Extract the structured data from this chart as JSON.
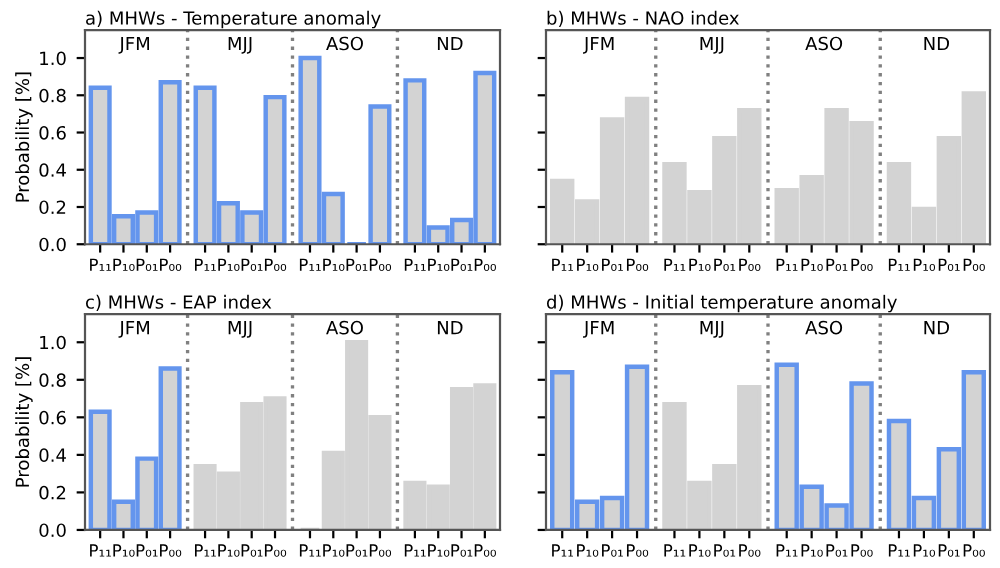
{
  "chart_data": [
    {
      "type": "bar",
      "title": "a) MHWs - Temperature anomaly",
      "ylabel": "Probability [%]",
      "categories": [
        "P₁₁",
        "P₁₀",
        "P₀₁",
        "P₀₀",
        "P₁₁",
        "P₁₀",
        "P₀₁",
        "P₀₀",
        "P₁₁",
        "P₁₀",
        "P₀₁",
        "P₀₀",
        "P₁₁",
        "P₁₀",
        "P₀₁",
        "P₀₀"
      ],
      "series": [
        {
          "color": "#6495ed",
          "values": [
            0.84,
            0.15,
            0.17,
            0.87,
            0.84,
            0.22,
            0.17,
            0.79,
            1.0,
            0.27,
            0.0,
            0.74,
            0.88,
            0.09,
            0.13,
            0.92
          ]
        }
      ],
      "annotations": [
        "JFM",
        "MJJ",
        "ASO",
        "ND"
      ],
      "ylim": [
        0,
        1.15
      ],
      "yticks": [
        {
          "value": 0,
          "label": "0.0"
        },
        {
          "value": 0.2,
          "label": "0.2"
        },
        {
          "value": 0.4,
          "label": "0.4"
        },
        {
          "value": 0.6,
          "label": "0.6"
        },
        {
          "value": 0.8,
          "label": "0.8"
        },
        {
          "value": 1.0,
          "label": "1.0"
        }
      ]
    },
    {
      "type": "bar",
      "title": "b) MHWs - NAO index",
      "tick_labels": "x",
      "categories": [
        "P₁₁",
        "P₁₀",
        "P₀₁",
        "P₀₀",
        "P₁₁",
        "P₁₀",
        "P₀₁",
        "P₀₀",
        "P₁₁",
        "P₁₀",
        "P₀₁",
        "P₀₀",
        "P₁₁",
        "P₁₀",
        "P₀₁",
        "P₀₀"
      ],
      "series": [
        {
          "color": "#d3d3d3",
          "values": [
            0.34,
            0.23,
            0.67,
            0.78,
            0.43,
            0.28,
            0.57,
            0.72,
            0.29,
            0.36,
            0.72,
            0.65,
            0.43,
            0.19,
            0.57,
            0.81
          ]
        }
      ],
      "annotations": [
        "JFM",
        "MJJ",
        "ASO",
        "ND"
      ],
      "ylim": [
        0,
        1.15
      ],
      "yticks": [
        0,
        0.2,
        0.4,
        0.6,
        0.8,
        1.0
      ]
    },
    {
      "type": "bar",
      "title": "c) MHWs - EAP index",
      "ylabel": "Probability [%]",
      "categories": [
        "P₁₁",
        "P₁₀",
        "P₀₁",
        "P₀₀",
        "P₁₁",
        "P₁₀",
        "P₀₁",
        "P₀₀",
        "P₁₁",
        "P₁₀",
        "P₀₁",
        "P₀₀",
        "P₁₁",
        "P₁₀",
        "P₀₁",
        "P₀₀"
      ],
      "series": [
        {
          "color": "#6495ed",
          "values": [
            0.63,
            0.15,
            0.38,
            0.86,
            null,
            null,
            null,
            null,
            null,
            null,
            null,
            null,
            null,
            null,
            null,
            null
          ]
        },
        {
          "color": "#d3d3d3",
          "values": [
            null,
            null,
            null,
            null,
            0.34,
            0.3,
            0.67,
            0.7,
            0.0,
            0.41,
            1.0,
            0.6,
            0.25,
            0.23,
            0.75,
            0.77
          ]
        }
      ],
      "annotations": [
        "JFM",
        "MJJ",
        "ASO",
        "ND"
      ],
      "ylim": [
        0,
        1.15
      ],
      "yticks": [
        {
          "value": 0,
          "label": "0.0"
        },
        {
          "value": 0.2,
          "label": "0.2"
        },
        {
          "value": 0.4,
          "label": "0.4"
        },
        {
          "value": 0.6,
          "label": "0.6"
        },
        {
          "value": 0.8,
          "label": "0.8"
        },
        {
          "value": 1.0,
          "label": "1.0"
        }
      ]
    },
    {
      "type": "bar",
      "title": "d) MHWs - Initial temperature anomaly",
      "tick_labels": "x",
      "categories": [
        "P₁₁",
        "P₁₀",
        "P₀₁",
        "P₀₀",
        "P₁₁",
        "P₁₀",
        "P₀₁",
        "P₀₀",
        "P₁₁",
        "P₁₀",
        "P₀₁",
        "P₀₀",
        "P₁₁",
        "P₁₀",
        "P₀₁",
        "P₀₀"
      ],
      "series": [
        {
          "color": "#6495ed",
          "values": [
            0.84,
            0.15,
            0.17,
            0.87,
            null,
            null,
            null,
            null,
            0.88,
            0.23,
            0.13,
            0.78,
            0.58,
            0.17,
            0.43,
            0.84
          ]
        },
        {
          "color": "#d3d3d3",
          "values": [
            null,
            null,
            null,
            null,
            0.67,
            0.25,
            0.34,
            0.76,
            null,
            null,
            null,
            null,
            null,
            null,
            null,
            null
          ]
        }
      ],
      "annotations": [
        "JFM",
        "MJJ",
        "ASO",
        "ND"
      ],
      "ylim": [
        0,
        1.15
      ],
      "yticks": [
        0,
        0.2,
        0.4,
        0.6,
        0.8,
        1.0
      ]
    }
  ]
}
